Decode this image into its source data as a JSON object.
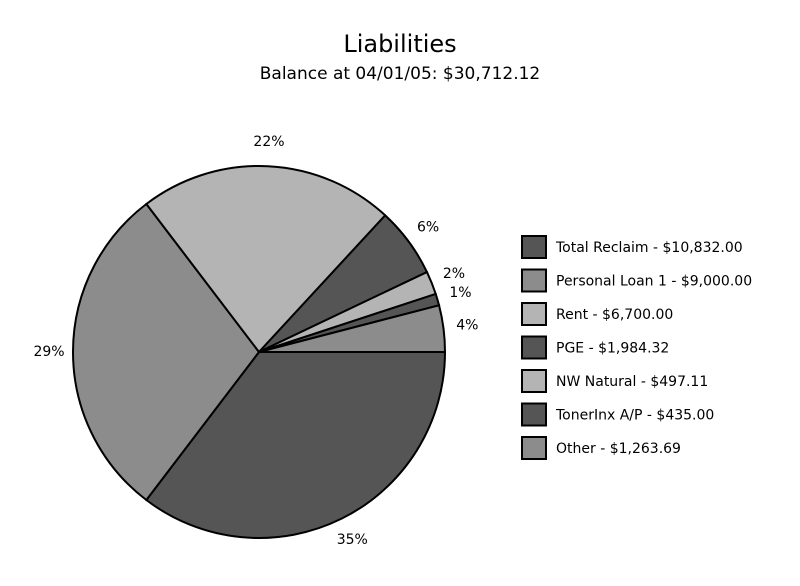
{
  "chart_data": {
    "type": "pie",
    "title": "Liabilities",
    "subtitle": "Balance at 04/01/05: $30,712.12",
    "categories": [
      "Total Reclaim - $10,832.00",
      "Personal Loan 1 - $9,000.00",
      "Rent - $6,700.00",
      "PGE - $1,984.32",
      "NW Natural - $497.11",
      "TonerInx A/P - $435.00",
      "Other - $1,263.69"
    ],
    "values": [
      35,
      29,
      22,
      6,
      2,
      1,
      4
    ],
    "value_labels": [
      "35%",
      "29%",
      "22%",
      "6%",
      "2%",
      "1%",
      "4%"
    ],
    "colors": [
      "#555555",
      "#8c8c8c",
      "#b4b4b4",
      "#555555",
      "#b4b4b4",
      "#555555",
      "#8c8c8c"
    ],
    "legend": "right"
  }
}
